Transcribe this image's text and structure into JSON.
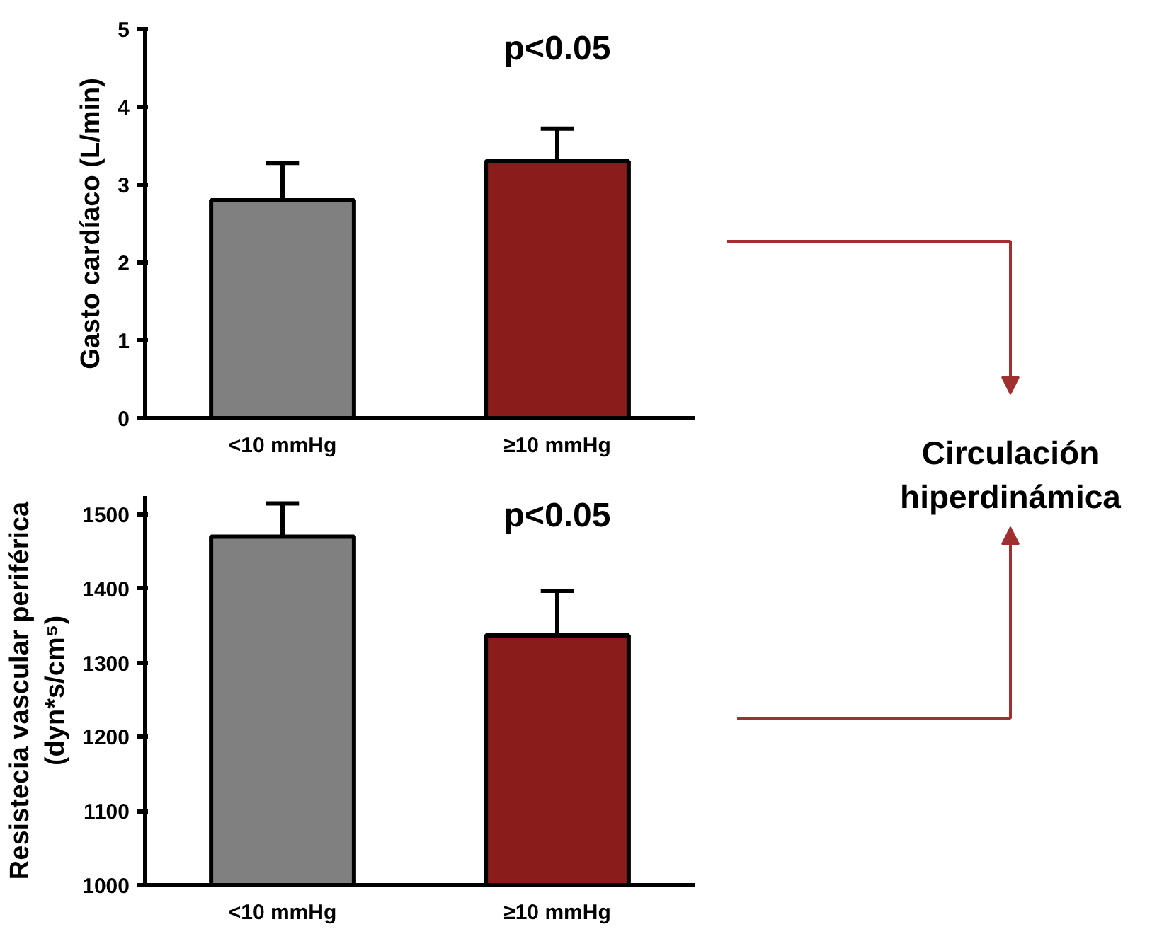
{
  "chart_data": [
    {
      "type": "bar",
      "ylabel": "Gasto cardíaco (L/min)",
      "categories": [
        "<10 mmHg",
        "≥10 mmHg"
      ],
      "values": [
        2.8,
        3.3
      ],
      "colors": [
        "#808080",
        "#8b1c1c"
      ],
      "errors": [
        0.48,
        0.42
      ],
      "ylim": [
        0,
        5
      ],
      "yticks": [
        0,
        1,
        2,
        3,
        4,
        5
      ],
      "grid": false,
      "annotations": [
        "p<0.05"
      ]
    },
    {
      "type": "bar",
      "ylabel": "Resistecia vascular periférica\n(dyn*s/cm⁵)",
      "categories": [
        "<10 mmHg",
        "≥10 mmHg"
      ],
      "values": [
        1470,
        1337
      ],
      "colors": [
        "#808080",
        "#8b1c1c"
      ],
      "errors": [
        45,
        60
      ],
      "ylim": [
        1000,
        1525
      ],
      "yticks": [
        1000,
        1100,
        1200,
        1300,
        1400,
        1500
      ],
      "grid": false,
      "annotations": [
        "p<0.05"
      ]
    },
    {
      "type": "other",
      "annotations": [
        "Circulación\nhiperdinámica"
      ]
    }
  ]
}
